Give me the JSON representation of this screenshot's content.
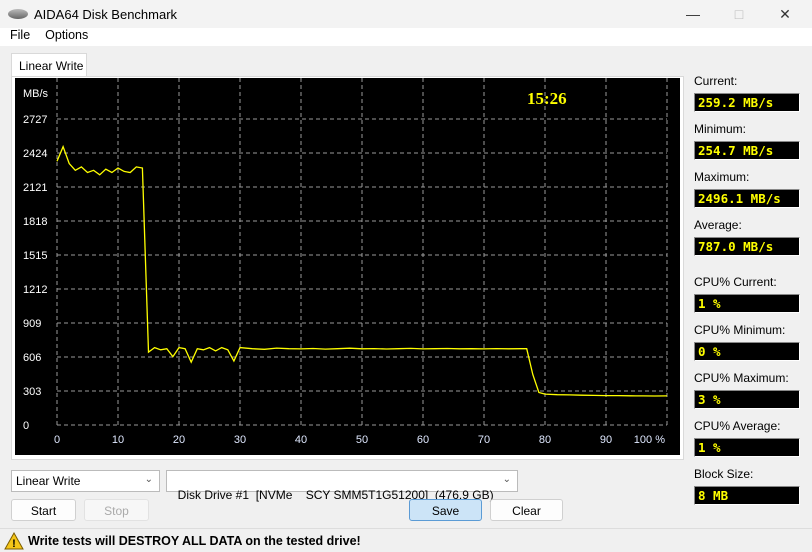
{
  "window": {
    "title": "AIDA64 Disk Benchmark",
    "icon": "disk-icon"
  },
  "menu": [
    "File",
    "Options"
  ],
  "tab": "Linear Write",
  "chart_data": {
    "type": "line",
    "ylabel": "MB/s",
    "time": "15:26",
    "y_ticks": [
      0,
      303,
      606,
      909,
      1212,
      1515,
      1818,
      2121,
      2424,
      2727
    ],
    "x_ticks": [
      "0",
      "10",
      "20",
      "30",
      "40",
      "50",
      "60",
      "70",
      "80",
      "90",
      "100 %"
    ],
    "xlim": [
      0,
      100
    ],
    "ylim": [
      0,
      2727
    ],
    "grid": true,
    "line_color": "#ffff00",
    "x": [
      0,
      1,
      2,
      3,
      4,
      5,
      6,
      7,
      8,
      9,
      10,
      11,
      12,
      13,
      14,
      15,
      16,
      17,
      18,
      19,
      20,
      21,
      22,
      23,
      24,
      25,
      26,
      27,
      28,
      29,
      30,
      32,
      34,
      36,
      38,
      40,
      42,
      44,
      46,
      48,
      50,
      52,
      54,
      56,
      58,
      60,
      62,
      64,
      66,
      68,
      70,
      72,
      74,
      76,
      77,
      78,
      79,
      80,
      82,
      84,
      86,
      88,
      90,
      92,
      94,
      96,
      98,
      100
    ],
    "y": [
      2350,
      2480,
      2330,
      2270,
      2300,
      2250,
      2270,
      2230,
      2280,
      2250,
      2290,
      2260,
      2250,
      2300,
      2290,
      650,
      690,
      670,
      680,
      610,
      690,
      680,
      560,
      680,
      670,
      690,
      660,
      690,
      670,
      570,
      690,
      680,
      675,
      685,
      680,
      678,
      682,
      676,
      680,
      684,
      679,
      681,
      677,
      680,
      683,
      678,
      680,
      682,
      679,
      680,
      678,
      681,
      679,
      680,
      680,
      450,
      290,
      275,
      270,
      268,
      266,
      264,
      262,
      262,
      260,
      259,
      258,
      259
    ]
  },
  "stats": [
    {
      "label": "Current:",
      "value": "259.2 MB/s"
    },
    {
      "label": "Minimum:",
      "value": "254.7 MB/s"
    },
    {
      "label": "Maximum:",
      "value": "2496.1 MB/s"
    },
    {
      "label": "Average:",
      "value": "787.0 MB/s"
    },
    {
      "label": "CPU% Current:",
      "value": "1 %"
    },
    {
      "label": "CPU% Minimum:",
      "value": "0 %"
    },
    {
      "label": "CPU% Maximum:",
      "value": "3 %"
    },
    {
      "label": "CPU% Average:",
      "value": "1 %"
    },
    {
      "label": "Block Size:",
      "value": "8 MB"
    }
  ],
  "controls": {
    "test": "Linear Write",
    "drive": "Disk Drive #1  [NVMe    SCY SMM5T1G51200]  (476.9 GB)",
    "start": "Start",
    "stop": "Stop",
    "save": "Save",
    "clear": "Clear"
  },
  "status": {
    "icon": "warning-icon",
    "text": "Write tests will DESTROY ALL DATA on the tested drive!"
  }
}
